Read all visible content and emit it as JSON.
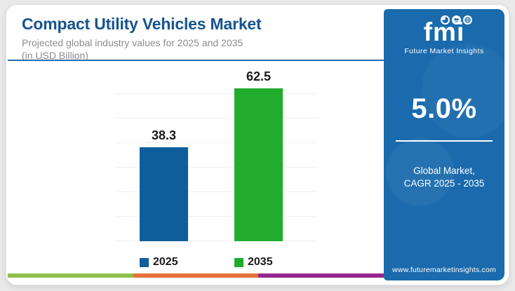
{
  "page": {
    "background": "#E9E9E9"
  },
  "header": {
    "title": "Compact Utility Vehicles Market",
    "subtitle": "Projected global industry values for 2025 and 2035",
    "unit_note": "(in USD Billion)",
    "title_color": "#17548E",
    "divider_color": "#2B6CB0"
  },
  "chart_data": {
    "type": "bar",
    "title": "Compact Utility Vehicles Market",
    "subtitle": "Projected global industry values for 2025 and 2035 (in USD Billion)",
    "categories": [
      "2025",
      "2035"
    ],
    "values": [
      38.3,
      62.5
    ],
    "data_labels": [
      "38.3",
      "62.5"
    ],
    "series_colors": [
      "#0E5E9C",
      "#21AC2D"
    ],
    "xlabel": "",
    "ylabel": "",
    "ylim": [
      0,
      70
    ],
    "gridlines": true,
    "gridline_step": 10,
    "legend_position": "bottom"
  },
  "sidebar": {
    "background": "#1A6AAD",
    "logo": {
      "text": "fmi",
      "tagline": "Future Market Insights",
      "icons": [
        "pie-chart",
        "handshake",
        "globe"
      ]
    },
    "cagr_value": "5.0%",
    "cagr_label_line1": "Global Market,",
    "cagr_label_line2": "CAGR 2025 - 2035",
    "website": "www.futuremarketinsights.com"
  },
  "footer_stripe": {
    "colors": [
      "#8CC04B",
      "#E4703C",
      "#93278F"
    ]
  }
}
